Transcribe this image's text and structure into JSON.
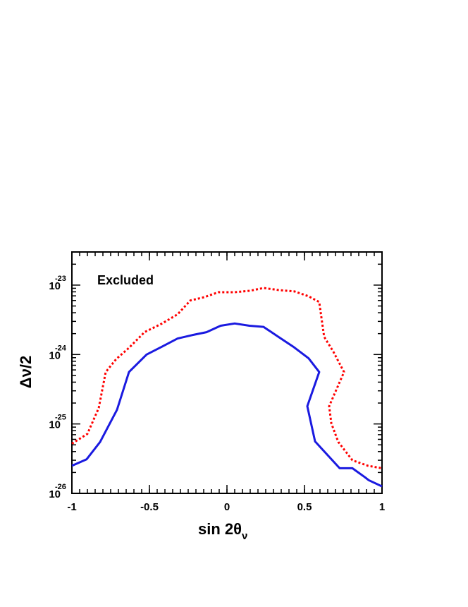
{
  "chart_data": {
    "type": "line",
    "xlabel": "sin 2θ",
    "xlabel_subscript": "ν",
    "ylabel": "Δν/2",
    "annotation": "Excluded",
    "xlim": [
      -1,
      1
    ],
    "xticks": [
      -1,
      -0.5,
      0,
      0.5,
      1
    ],
    "ylim": [
      1e-26,
      3e-23
    ],
    "ylog": true,
    "yticks": [
      {
        "value": 1e-26,
        "label": "10",
        "superscript": "-26"
      },
      {
        "value": 1e-25,
        "label": "10",
        "superscript": "-25"
      },
      {
        "value": 1e-24,
        "label": "10",
        "superscript": "-24"
      },
      {
        "value": 1e-23,
        "label": "10",
        "superscript": "-23"
      }
    ],
    "series": [
      {
        "color": "#ff0000",
        "dashed": true,
        "x": [
          -1,
          -0.9,
          -0.827,
          -0.782,
          -0.714,
          -0.632,
          -0.532,
          -0.418,
          -0.318,
          -0.236,
          -0.145,
          -0.055,
          0.05,
          0.15,
          0.236,
          0.332,
          0.436,
          0.527,
          0.595,
          0.627,
          0.686,
          0.755,
          0.659,
          0.673,
          0.718,
          0.809,
          0.909,
          1
        ],
        "values": [
          5.2e-26,
          7.2e-26,
          1.7e-25,
          5.6e-25,
          8.6e-25,
          1.25e-24,
          2.1e-24,
          2.8e-24,
          3.8e-24,
          6e-24,
          6.7e-24,
          7.9e-24,
          7.9e-24,
          8.3e-24,
          9.1e-24,
          8.5e-24,
          8.1e-24,
          6.9e-24,
          5.7e-24,
          1.8e-24,
          1.1e-24,
          5.6e-25,
          1.8e-25,
          1.02e-25,
          5.5e-26,
          3e-26,
          2.5e-26,
          2.3e-26
        ]
      },
      {
        "color": "#1a1ae0",
        "dashed": false,
        "x": [
          -1,
          -0.905,
          -0.818,
          -0.709,
          -0.632,
          -0.518,
          -0.418,
          -0.318,
          -0.227,
          -0.132,
          -0.041,
          0.05,
          0.145,
          0.236,
          0.332,
          0.427,
          0.527,
          0.595,
          0.518,
          0.568,
          0.727,
          0.809,
          0.891,
          0.914,
          1
        ],
        "values": [
          2.5e-26,
          3.1e-26,
          5.5e-26,
          1.6e-25,
          5.6e-25,
          1e-24,
          1.3e-24,
          1.7e-24,
          1.9e-24,
          2.1e-24,
          2.6e-24,
          2.8e-24,
          2.6e-24,
          2.5e-24,
          1.8e-24,
          1.3e-24,
          8.8e-25,
          5.6e-25,
          1.8e-25,
          5.6e-26,
          2.3e-26,
          2.3e-26,
          1.7e-26,
          1.55e-26,
          1.26e-26
        ]
      }
    ]
  }
}
